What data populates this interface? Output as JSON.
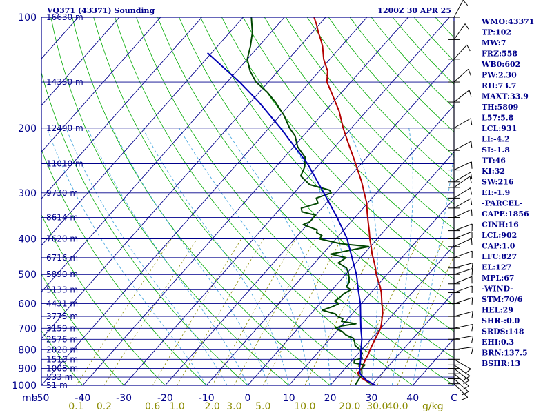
{
  "chart_data": {
    "type": "skew-t sounding",
    "title": "VQ371 (43371) Sounding",
    "time_label": "1200Z 30 APR 25",
    "pressure_axis": {
      "range_mb": [
        100,
        1000
      ],
      "log_scale": true,
      "tick_labels": [
        "100",
        "200",
        "300",
        "400",
        "500",
        "600",
        "700",
        "800",
        "900",
        "1000"
      ],
      "unit_label": "mb"
    },
    "temperature_axis": {
      "range_c": [
        -50,
        50
      ],
      "tick_labels": [
        "-50",
        "-40",
        "-30",
        "-20",
        "-10",
        "0",
        "10",
        "20",
        "30",
        "40",
        "C"
      ]
    },
    "mixing_ratio_labels": [
      "0.1",
      "0.2",
      "0.6",
      "1.0",
      "2.0",
      "3.0",
      "5.0",
      "10.0",
      "20.0",
      "30.0",
      "40.0"
    ],
    "mixing_ratio_unit": "g/kg",
    "height_labels": [
      {
        "p": 100,
        "text": "16630 m"
      },
      {
        "p": 150,
        "text": "14330 m"
      },
      {
        "p": 200,
        "text": "12490 m"
      },
      {
        "p": 250,
        "text": "11010 m"
      },
      {
        "p": 300,
        "text": "9730 m"
      },
      {
        "p": 350,
        "text": "8614 m"
      },
      {
        "p": 400,
        "text": "7620 m"
      },
      {
        "p": 450,
        "text": "6716 m"
      },
      {
        "p": 500,
        "text": "5890 m"
      },
      {
        "p": 550,
        "text": "5133 m"
      },
      {
        "p": 600,
        "text": "4431 m"
      },
      {
        "p": 650,
        "text": "3775 m"
      },
      {
        "p": 700,
        "text": "3159 m"
      },
      {
        "p": 750,
        "text": "2576 m"
      },
      {
        "p": 800,
        "text": "2028 m"
      },
      {
        "p": 850,
        "text": "1510 m"
      },
      {
        "p": 900,
        "text": "1008 m"
      },
      {
        "p": 950,
        "text": "533 m"
      },
      {
        "p": 1000,
        "text": "51 m"
      }
    ],
    "series": [
      {
        "name": "Temperature",
        "color": "#b40000",
        "points": [
          [
            1000,
            31
          ],
          [
            975,
            28
          ],
          [
            950,
            25.5
          ],
          [
            925,
            24
          ],
          [
            900,
            24
          ],
          [
            875,
            23.5
          ],
          [
            850,
            23
          ],
          [
            825,
            22.6
          ],
          [
            800,
            22
          ],
          [
            775,
            21.5
          ],
          [
            750,
            21
          ],
          [
            725,
            20.5
          ],
          [
            700,
            20
          ],
          [
            680,
            19.2
          ],
          [
            660,
            18.3
          ],
          [
            640,
            17.4
          ],
          [
            620,
            16.3
          ],
          [
            600,
            15
          ],
          [
            580,
            13.8
          ],
          [
            560,
            12.5
          ],
          [
            540,
            11
          ],
          [
            520,
            9.2
          ],
          [
            500,
            7.4
          ],
          [
            480,
            5.8
          ],
          [
            460,
            4
          ],
          [
            440,
            2
          ],
          [
            420,
            0.2
          ],
          [
            400,
            -1.8
          ],
          [
            380,
            -3.7
          ],
          [
            360,
            -5.8
          ],
          [
            340,
            -8
          ],
          [
            320,
            -10.2
          ],
          [
            300,
            -13
          ],
          [
            280,
            -16
          ],
          [
            260,
            -19.5
          ],
          [
            240,
            -23.3
          ],
          [
            220,
            -27.5
          ],
          [
            200,
            -32
          ],
          [
            180,
            -36.6
          ],
          [
            160,
            -42.5
          ],
          [
            150,
            -45.8
          ],
          [
            140,
            -48
          ],
          [
            130,
            -51.5
          ],
          [
            120,
            -54.5
          ],
          [
            115,
            -56.4
          ],
          [
            110,
            -58.5
          ],
          [
            105,
            -60.5
          ],
          [
            100,
            -62.8
          ]
        ]
      },
      {
        "name": "Dewpoint",
        "color": "#004600",
        "points": [
          [
            1000,
            26
          ],
          [
            980,
            25.8
          ],
          [
            960,
            25.6
          ],
          [
            940,
            25.5
          ],
          [
            925,
            25
          ],
          [
            900,
            24
          ],
          [
            880,
            24
          ],
          [
            870,
            21
          ],
          [
            855,
            20.5
          ],
          [
            845,
            22
          ],
          [
            830,
            21
          ],
          [
            820,
            21
          ],
          [
            800,
            19.6
          ],
          [
            780,
            17.5
          ],
          [
            760,
            16.5
          ],
          [
            745,
            15.5
          ],
          [
            730,
            13
          ],
          [
            715,
            11.5
          ],
          [
            700,
            9
          ],
          [
            690,
            10
          ],
          [
            680,
            13
          ],
          [
            670,
            9
          ],
          [
            660,
            8.8
          ],
          [
            650,
            7
          ],
          [
            640,
            6
          ],
          [
            625,
            2
          ],
          [
            610,
            3.8
          ],
          [
            600,
            4.6
          ],
          [
            590,
            3
          ],
          [
            580,
            3.5
          ],
          [
            565,
            3.6
          ],
          [
            550,
            4.5
          ],
          [
            540,
            2.8
          ],
          [
            525,
            2.5
          ],
          [
            510,
            1.5
          ],
          [
            495,
            0.3
          ],
          [
            480,
            -1.2
          ],
          [
            465,
            -4.3
          ],
          [
            450,
            -3.5
          ],
          [
            440,
            -8
          ],
          [
            432,
            -5
          ],
          [
            420,
            -0.4
          ],
          [
            412,
            -8
          ],
          [
            400,
            -14
          ],
          [
            392,
            -14.1
          ],
          [
            385,
            -16
          ],
          [
            378,
            -16.5
          ],
          [
            366,
            -21
          ],
          [
            360,
            -20
          ],
          [
            354,
            -20
          ],
          [
            345,
            -20
          ],
          [
            338,
            -24
          ],
          [
            330,
            -25
          ],
          [
            320,
            -22
          ],
          [
            310,
            -23.5
          ],
          [
            300,
            -21
          ],
          [
            295,
            -22
          ],
          [
            285,
            -28
          ],
          [
            270,
            -32
          ],
          [
            255,
            -33
          ],
          [
            240,
            -35
          ],
          [
            225,
            -39
          ],
          [
            210,
            -42
          ],
          [
            200,
            -45
          ],
          [
            185,
            -49
          ],
          [
            170,
            -54
          ],
          [
            160,
            -58
          ],
          [
            150,
            -63
          ],
          [
            140,
            -66.8
          ],
          [
            130,
            -70
          ],
          [
            120,
            -72
          ],
          [
            110,
            -74.5
          ],
          [
            100,
            -78
          ]
        ]
      },
      {
        "name": "Parcel",
        "color": "#0000b4",
        "points": [
          [
            1000,
            31
          ],
          [
            970,
            27.8
          ],
          [
            931,
            24.8
          ],
          [
            900,
            23.5
          ],
          [
            850,
            21.8
          ],
          [
            800,
            19.8
          ],
          [
            750,
            17.8
          ],
          [
            700,
            15.2
          ],
          [
            650,
            12.6
          ],
          [
            600,
            9.8
          ],
          [
            550,
            6.3
          ],
          [
            500,
            2.6
          ],
          [
            450,
            -2.1
          ],
          [
            400,
            -7.3
          ],
          [
            350,
            -14.3
          ],
          [
            300,
            -22.8
          ],
          [
            250,
            -33
          ],
          [
            200,
            -47.2
          ],
          [
            170,
            -58
          ],
          [
            150,
            -67
          ],
          [
            125,
            -81
          ]
        ]
      }
    ],
    "wind_barbs_note": "wind profile shown as barbs along right axis",
    "indices": [
      "WMO:43371",
      "TP:102",
      "MW:7",
      "FRZ:558",
      "WB0:602",
      "PW:2.30",
      "RH:73.7",
      "MAXT:33.9",
      "TH:5809",
      "L57:5.8",
      "LCL:931",
      "LI:-4.2",
      "SI:-1.8",
      "TT:46",
      "KI:32",
      "SW:216",
      "EI:-1.9",
      "-PARCEL-",
      "CAPE:1856",
      "CINH:16",
      "LCL:902",
      "CAP:1.0",
      "LFC:827",
      "EL:127",
      "MPL:67",
      "-WIND-",
      "STM:70/6",
      "HEL:29",
      "SHR-:0.0",
      "SRDS:148",
      "EHI:0.3",
      "BRN:137.5",
      "BSHR:13"
    ],
    "colors": {
      "axis": "#00008b",
      "isotherm_isobar": "#00008b",
      "dry_adiabat": "#00aa00",
      "moist_adiabat": "#4aa8e0",
      "mixing_ratio": "#8b8b00"
    }
  }
}
